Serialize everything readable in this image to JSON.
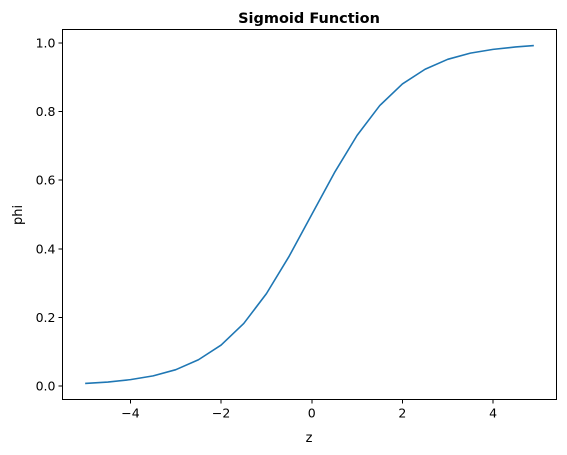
{
  "chart_data": {
    "type": "line",
    "title": "Sigmoid Function",
    "xlabel": "z",
    "ylabel": "phi",
    "xlim": [
      -5.5,
      5.4
    ],
    "ylim": [
      -0.04,
      1.04
    ],
    "x_ticks": [
      -4,
      -2,
      0,
      2,
      4
    ],
    "y_ticks": [
      0.0,
      0.2,
      0.4,
      0.6,
      0.8,
      1.0
    ],
    "x_tick_labels": [
      "−4",
      "−2",
      "0",
      "2",
      "4"
    ],
    "y_tick_labels": [
      "0.0",
      "0.2",
      "0.4",
      "0.6",
      "0.8",
      "1.0"
    ],
    "grid": false,
    "series": [
      {
        "color": "#1f77b4",
        "x": [
          -5.0,
          -4.5,
          -4.0,
          -3.5,
          -3.0,
          -2.5,
          -2.0,
          -1.5,
          -1.0,
          -0.5,
          0.0,
          0.5,
          1.0,
          1.5,
          2.0,
          2.5,
          3.0,
          3.5,
          4.0,
          4.5,
          4.9
        ],
        "y": [
          0.007,
          0.011,
          0.018,
          0.029,
          0.047,
          0.076,
          0.119,
          0.182,
          0.269,
          0.378,
          0.5,
          0.622,
          0.731,
          0.818,
          0.881,
          0.924,
          0.953,
          0.971,
          0.982,
          0.989,
          0.993
        ]
      }
    ]
  }
}
